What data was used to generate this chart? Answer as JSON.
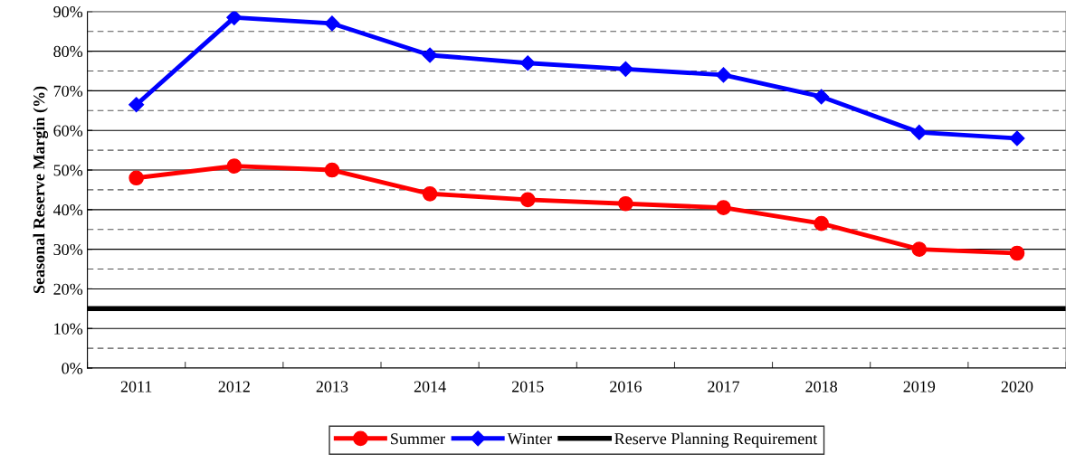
{
  "chart_data": {
    "type": "line",
    "ylabel": "Seasonal Reserve Margin (%)",
    "categories": [
      "2011",
      "2012",
      "2013",
      "2014",
      "2015",
      "2016",
      "2017",
      "2018",
      "2019",
      "2020"
    ],
    "series": [
      {
        "name": "Summer",
        "color": "#ff0000",
        "marker": "circle",
        "values": [
          48,
          51,
          50,
          44,
          42.5,
          41.5,
          40.5,
          36.5,
          30,
          29
        ]
      },
      {
        "name": "Winter",
        "color": "#0000ff",
        "marker": "diamond",
        "values": [
          66.5,
          88.5,
          87,
          79,
          77,
          75.5,
          74,
          68.5,
          59.5,
          58
        ]
      }
    ],
    "ylim": [
      0,
      90
    ],
    "yticks": [
      {
        "value": 0,
        "label": "0%"
      },
      {
        "value": 10,
        "label": "10%"
      },
      {
        "value": 20,
        "label": "20%"
      },
      {
        "value": 30,
        "label": "30%"
      },
      {
        "value": 40,
        "label": "40%"
      },
      {
        "value": 50,
        "label": "50%"
      },
      {
        "value": 60,
        "label": "60%"
      },
      {
        "value": 70,
        "label": "70%"
      },
      {
        "value": 80,
        "label": "80%"
      },
      {
        "value": 90,
        "label": "90%"
      }
    ],
    "grid": "y",
    "ref_lines": [
      {
        "axis": "y",
        "value": 15,
        "label": "Reserve Planning Requirement",
        "color": "#000000",
        "line_style": "solid"
      },
      {
        "axis": "y",
        "value": 5,
        "color": "#555555",
        "line_style": "dashed"
      },
      {
        "axis": "y",
        "value": 25,
        "color": "#555555",
        "line_style": "dashed"
      },
      {
        "axis": "y",
        "value": 35,
        "color": "#555555",
        "line_style": "dashed"
      },
      {
        "axis": "y",
        "value": 45,
        "color": "#555555",
        "line_style": "dashed"
      },
      {
        "axis": "y",
        "value": 55,
        "color": "#555555",
        "line_style": "dashed"
      },
      {
        "axis": "y",
        "value": 65,
        "color": "#555555",
        "line_style": "dashed"
      },
      {
        "axis": "y",
        "value": 75,
        "color": "#555555",
        "line_style": "dashed"
      },
      {
        "axis": "y",
        "value": 85,
        "color": "#555555",
        "line_style": "dashed"
      }
    ],
    "legend": "bottom"
  }
}
